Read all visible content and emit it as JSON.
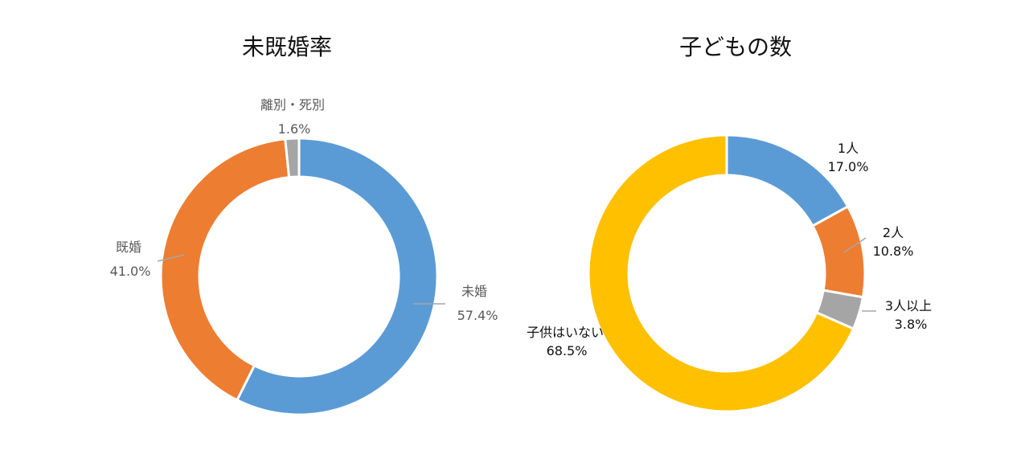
{
  "chart_data": [
    {
      "type": "pie",
      "title": "未既婚率",
      "categories": [
        "未婚",
        "既婚",
        "離別・死別"
      ],
      "values": [
        57.4,
        41.0,
        1.6
      ],
      "value_labels": [
        "57.4%",
        "41.0%",
        "1.6%"
      ],
      "colors": [
        "#5B9BD5",
        "#ED7D31",
        "#A5A5A5"
      ],
      "legend": "none",
      "label_color": "#595959"
    },
    {
      "type": "pie",
      "title": "子どもの数",
      "categories": [
        "1人",
        "2人",
        "3人以上",
        "子供はいない"
      ],
      "values": [
        17.0,
        10.8,
        3.8,
        68.5
      ],
      "value_labels": [
        "17.0%",
        "10.8%",
        "3.8%",
        "68.5%"
      ],
      "colors": [
        "#5B9BD5",
        "#ED7D31",
        "#A5A5A5",
        "#FFC000"
      ],
      "legend": "none",
      "label_color": "#111111"
    }
  ]
}
